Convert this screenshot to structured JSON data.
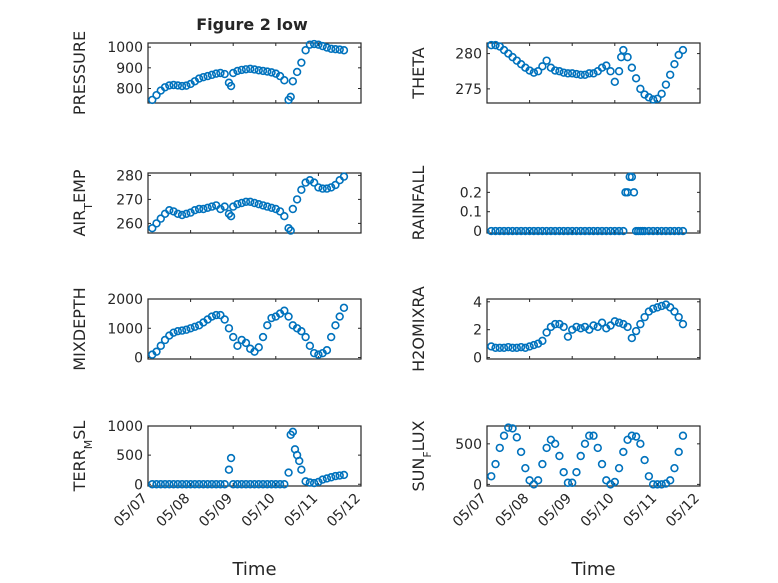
{
  "figure_title": "Figure 2 low",
  "xlabel": "Time",
  "colors": {
    "marker": "#0072BD",
    "axis": "#262626",
    "grid": "#d4d4d4"
  },
  "x_ticks": [
    "05/07",
    "05/08",
    "05/09",
    "05/10",
    "05/11",
    "05/12"
  ],
  "chart_data": [
    {
      "type": "scatter",
      "ylabel": "PRESSURE",
      "ylabel_sub": "",
      "ylabel_rest": "",
      "ylim": [
        730,
        1020
      ],
      "yticks": [
        800,
        900,
        1000
      ],
      "grid": true,
      "x": [
        0.1,
        0.2,
        0.3,
        0.4,
        0.5,
        0.6,
        0.7,
        0.8,
        0.9,
        1.0,
        1.1,
        1.2,
        1.3,
        1.4,
        1.5,
        1.6,
        1.7,
        1.8,
        1.9,
        1.95,
        2.0,
        2.1,
        2.2,
        2.3,
        2.4,
        2.5,
        2.6,
        2.7,
        2.8,
        2.9,
        3.0,
        3.1,
        3.2,
        3.3,
        3.35,
        3.4,
        3.5,
        3.6,
        3.7,
        3.8,
        3.9,
        4.0,
        4.1,
        4.2,
        4.3,
        4.4,
        4.5,
        4.6
      ],
      "y": [
        745,
        768,
        790,
        806,
        815,
        817,
        815,
        812,
        814,
        822,
        835,
        848,
        855,
        860,
        866,
        872,
        875,
        870,
        828,
        812,
        875,
        885,
        890,
        893,
        895,
        892,
        888,
        885,
        882,
        878,
        872,
        860,
        840,
        745,
        760,
        835,
        880,
        925,
        985,
        1012,
        1015,
        1012,
        1005,
        998,
        992,
        990,
        988,
        985
      ]
    },
    {
      "type": "scatter",
      "ylabel": "THETA",
      "ylabel_sub": "",
      "ylabel_rest": "",
      "ylim": [
        273,
        281.5
      ],
      "yticks": [
        275,
        280
      ],
      "grid": true,
      "x": [
        0.1,
        0.2,
        0.3,
        0.4,
        0.5,
        0.6,
        0.7,
        0.8,
        0.9,
        1.0,
        1.1,
        1.2,
        1.3,
        1.4,
        1.5,
        1.6,
        1.7,
        1.8,
        1.9,
        2.0,
        2.1,
        2.2,
        2.3,
        2.4,
        2.5,
        2.6,
        2.7,
        2.8,
        2.9,
        3.0,
        3.1,
        3.15,
        3.2,
        3.3,
        3.4,
        3.5,
        3.6,
        3.7,
        3.8,
        3.9,
        4.0,
        4.1,
        4.2,
        4.3,
        4.4,
        4.5,
        4.6
      ],
      "y": [
        281.2,
        281.2,
        281.0,
        280.5,
        280.0,
        279.5,
        279.0,
        278.5,
        278.0,
        277.6,
        277.3,
        277.5,
        278.2,
        279.0,
        278.0,
        277.6,
        277.5,
        277.3,
        277.2,
        277.2,
        277.1,
        277.0,
        277.0,
        277.2,
        277.2,
        277.5,
        278.0,
        278.3,
        277.5,
        276.0,
        277.5,
        279.5,
        280.5,
        279.5,
        278.0,
        276.5,
        275.0,
        274.2,
        273.8,
        273.5,
        273.6,
        274.3,
        275.6,
        277.0,
        278.5,
        279.8,
        280.5
      ]
    },
    {
      "type": "scatter",
      "ylabel": "AIR",
      "ylabel_sub": "T",
      "ylabel_rest": "EMP",
      "ylim": [
        256,
        281
      ],
      "yticks": [
        260,
        270,
        280
      ],
      "grid": true,
      "x": [
        0.1,
        0.2,
        0.3,
        0.4,
        0.5,
        0.6,
        0.7,
        0.8,
        0.9,
        1.0,
        1.1,
        1.2,
        1.3,
        1.4,
        1.5,
        1.6,
        1.7,
        1.8,
        1.9,
        1.95,
        2.0,
        2.1,
        2.2,
        2.3,
        2.4,
        2.5,
        2.6,
        2.7,
        2.8,
        2.9,
        3.0,
        3.1,
        3.2,
        3.3,
        3.35,
        3.4,
        3.5,
        3.6,
        3.7,
        3.8,
        3.9,
        4.0,
        4.1,
        4.2,
        4.3,
        4.4,
        4.5,
        4.6
      ],
      "y": [
        258,
        260,
        262,
        264,
        265.5,
        265,
        264,
        263.5,
        264,
        264.5,
        265.5,
        266,
        266,
        266.5,
        267,
        267.5,
        266,
        267,
        264,
        263,
        267,
        268,
        268.5,
        269,
        269,
        268.5,
        268,
        267.5,
        267,
        266.5,
        266,
        265,
        263,
        258,
        257,
        266,
        270,
        274,
        277,
        278,
        277,
        275,
        274.5,
        274.5,
        275,
        276,
        278,
        279.5
      ]
    },
    {
      "type": "scatter",
      "ylabel": "RAINFALL",
      "ylabel_sub": "",
      "ylabel_rest": "",
      "ylim": [
        -0.01,
        0.3
      ],
      "yticks": [
        0,
        0.1,
        0.2
      ],
      "grid": true,
      "x": [
        0.1,
        0.2,
        0.3,
        0.4,
        0.5,
        0.6,
        0.7,
        0.8,
        0.9,
        1.0,
        1.1,
        1.2,
        1.3,
        1.4,
        1.5,
        1.6,
        1.7,
        1.8,
        1.9,
        2.0,
        2.1,
        2.2,
        2.3,
        2.4,
        2.5,
        2.6,
        2.7,
        2.8,
        2.9,
        3.0,
        3.1,
        3.2,
        3.25,
        3.3,
        3.35,
        3.4,
        3.45,
        3.5,
        3.55,
        3.6,
        3.65,
        3.7,
        3.8,
        3.9,
        4.0,
        4.1,
        4.2,
        4.3,
        4.4,
        4.5,
        4.6
      ],
      "y": [
        0,
        0,
        0,
        0,
        0,
        0,
        0,
        0,
        0,
        0,
        0,
        0,
        0,
        0,
        0,
        0,
        0,
        0,
        0,
        0,
        0,
        0,
        0,
        0,
        0,
        0,
        0,
        0,
        0,
        0,
        0,
        0,
        0.2,
        0.2,
        0.28,
        0.28,
        0.2,
        0,
        0,
        0,
        0,
        0,
        0,
        0,
        0,
        0,
        0,
        0,
        0,
        0,
        0
      ]
    },
    {
      "type": "scatter",
      "ylabel": "MIXDEPTH",
      "ylabel_sub": "",
      "ylabel_rest": "",
      "ylim": [
        -50,
        2000
      ],
      "yticks": [
        0,
        1000,
        2000
      ],
      "grid": true,
      "x": [
        0.1,
        0.2,
        0.3,
        0.4,
        0.5,
        0.6,
        0.7,
        0.8,
        0.9,
        1.0,
        1.1,
        1.2,
        1.3,
        1.4,
        1.5,
        1.6,
        1.7,
        1.8,
        1.9,
        2.0,
        2.1,
        2.2,
        2.3,
        2.4,
        2.5,
        2.6,
        2.7,
        2.8,
        2.9,
        3.0,
        3.1,
        3.2,
        3.3,
        3.4,
        3.5,
        3.6,
        3.7,
        3.8,
        3.9,
        4.0,
        4.1,
        4.2,
        4.3,
        4.4,
        4.5,
        4.6
      ],
      "y": [
        100,
        200,
        400,
        600,
        750,
        850,
        900,
        920,
        950,
        1000,
        1050,
        1100,
        1200,
        1300,
        1400,
        1450,
        1450,
        1300,
        1000,
        700,
        400,
        600,
        500,
        300,
        200,
        350,
        700,
        1100,
        1350,
        1400,
        1500,
        1600,
        1400,
        1100,
        1000,
        900,
        700,
        400,
        150,
        100,
        150,
        250,
        700,
        1100,
        1400,
        1700
      ]
    },
    {
      "type": "scatter",
      "ylabel": "H2OMIXRA",
      "ylabel_sub": "",
      "ylabel_rest": "",
      "ylim": [
        -0.1,
        4.2
      ],
      "yticks": [
        0,
        2,
        4
      ],
      "grid": true,
      "x": [
        0.1,
        0.2,
        0.3,
        0.4,
        0.5,
        0.6,
        0.7,
        0.8,
        0.9,
        1.0,
        1.1,
        1.2,
        1.3,
        1.4,
        1.5,
        1.6,
        1.7,
        1.8,
        1.9,
        2.0,
        2.1,
        2.2,
        2.3,
        2.4,
        2.5,
        2.6,
        2.7,
        2.8,
        2.9,
        3.0,
        3.1,
        3.2,
        3.3,
        3.4,
        3.5,
        3.6,
        3.7,
        3.8,
        3.9,
        4.0,
        4.1,
        4.2,
        4.3,
        4.4,
        4.5,
        4.6
      ],
      "y": [
        0.8,
        0.7,
        0.7,
        0.7,
        0.75,
        0.7,
        0.7,
        0.75,
        0.7,
        0.8,
        0.9,
        1.0,
        1.2,
        1.8,
        2.2,
        2.4,
        2.4,
        2.2,
        1.5,
        2.0,
        2.2,
        2.1,
        2.2,
        2.0,
        2.3,
        2.2,
        2.5,
        2.1,
        2.3,
        2.6,
        2.5,
        2.4,
        2.2,
        1.4,
        1.9,
        2.4,
        2.9,
        3.3,
        3.5,
        3.6,
        3.7,
        3.8,
        3.6,
        3.3,
        2.9,
        2.4
      ]
    },
    {
      "type": "scatter",
      "ylabel": "TERR",
      "ylabel_sub": "M",
      "ylabel_rest": "SL",
      "ylim": [
        -30,
        1000
      ],
      "yticks": [
        0,
        500,
        1000
      ],
      "grid": true,
      "x": [
        0.1,
        0.2,
        0.3,
        0.4,
        0.5,
        0.6,
        0.7,
        0.8,
        0.9,
        1.0,
        1.1,
        1.2,
        1.3,
        1.4,
        1.5,
        1.6,
        1.7,
        1.8,
        1.9,
        1.95,
        2.0,
        2.1,
        2.2,
        2.3,
        2.4,
        2.5,
        2.6,
        2.7,
        2.8,
        2.9,
        3.0,
        3.1,
        3.2,
        3.3,
        3.35,
        3.4,
        3.45,
        3.5,
        3.55,
        3.6,
        3.7,
        3.8,
        3.9,
        4.0,
        4.1,
        4.2,
        4.3,
        4.4,
        4.5,
        4.6
      ],
      "y": [
        0,
        0,
        0,
        0,
        0,
        0,
        0,
        0,
        0,
        0,
        0,
        0,
        0,
        0,
        0,
        0,
        0,
        0,
        250,
        450,
        0,
        0,
        0,
        0,
        0,
        0,
        0,
        0,
        0,
        0,
        0,
        0,
        0,
        200,
        850,
        900,
        600,
        500,
        400,
        250,
        50,
        30,
        20,
        40,
        80,
        100,
        120,
        140,
        150,
        160
      ]
    },
    {
      "type": "scatter",
      "ylabel": "SUN",
      "ylabel_sub": "F",
      "ylabel_rest": "LUX",
      "ylim": [
        -20,
        720
      ],
      "yticks": [
        0,
        500
      ],
      "grid": true,
      "x": [
        0.1,
        0.2,
        0.3,
        0.4,
        0.5,
        0.6,
        0.7,
        0.8,
        0.9,
        1.0,
        1.1,
        1.2,
        1.3,
        1.4,
        1.5,
        1.6,
        1.7,
        1.8,
        1.9,
        2.0,
        2.1,
        2.2,
        2.3,
        2.4,
        2.5,
        2.6,
        2.7,
        2.8,
        2.9,
        3.0,
        3.1,
        3.2,
        3.3,
        3.4,
        3.5,
        3.6,
        3.7,
        3.8,
        3.9,
        4.0,
        4.1,
        4.2,
        4.3,
        4.4,
        4.5,
        4.6
      ],
      "y": [
        100,
        250,
        450,
        600,
        700,
        690,
        580,
        400,
        200,
        50,
        0,
        50,
        250,
        450,
        550,
        500,
        350,
        150,
        20,
        20,
        150,
        350,
        500,
        600,
        600,
        450,
        250,
        50,
        0,
        30,
        200,
        400,
        550,
        600,
        590,
        500,
        300,
        100,
        0,
        0,
        0,
        10,
        50,
        200,
        400,
        600
      ]
    }
  ]
}
